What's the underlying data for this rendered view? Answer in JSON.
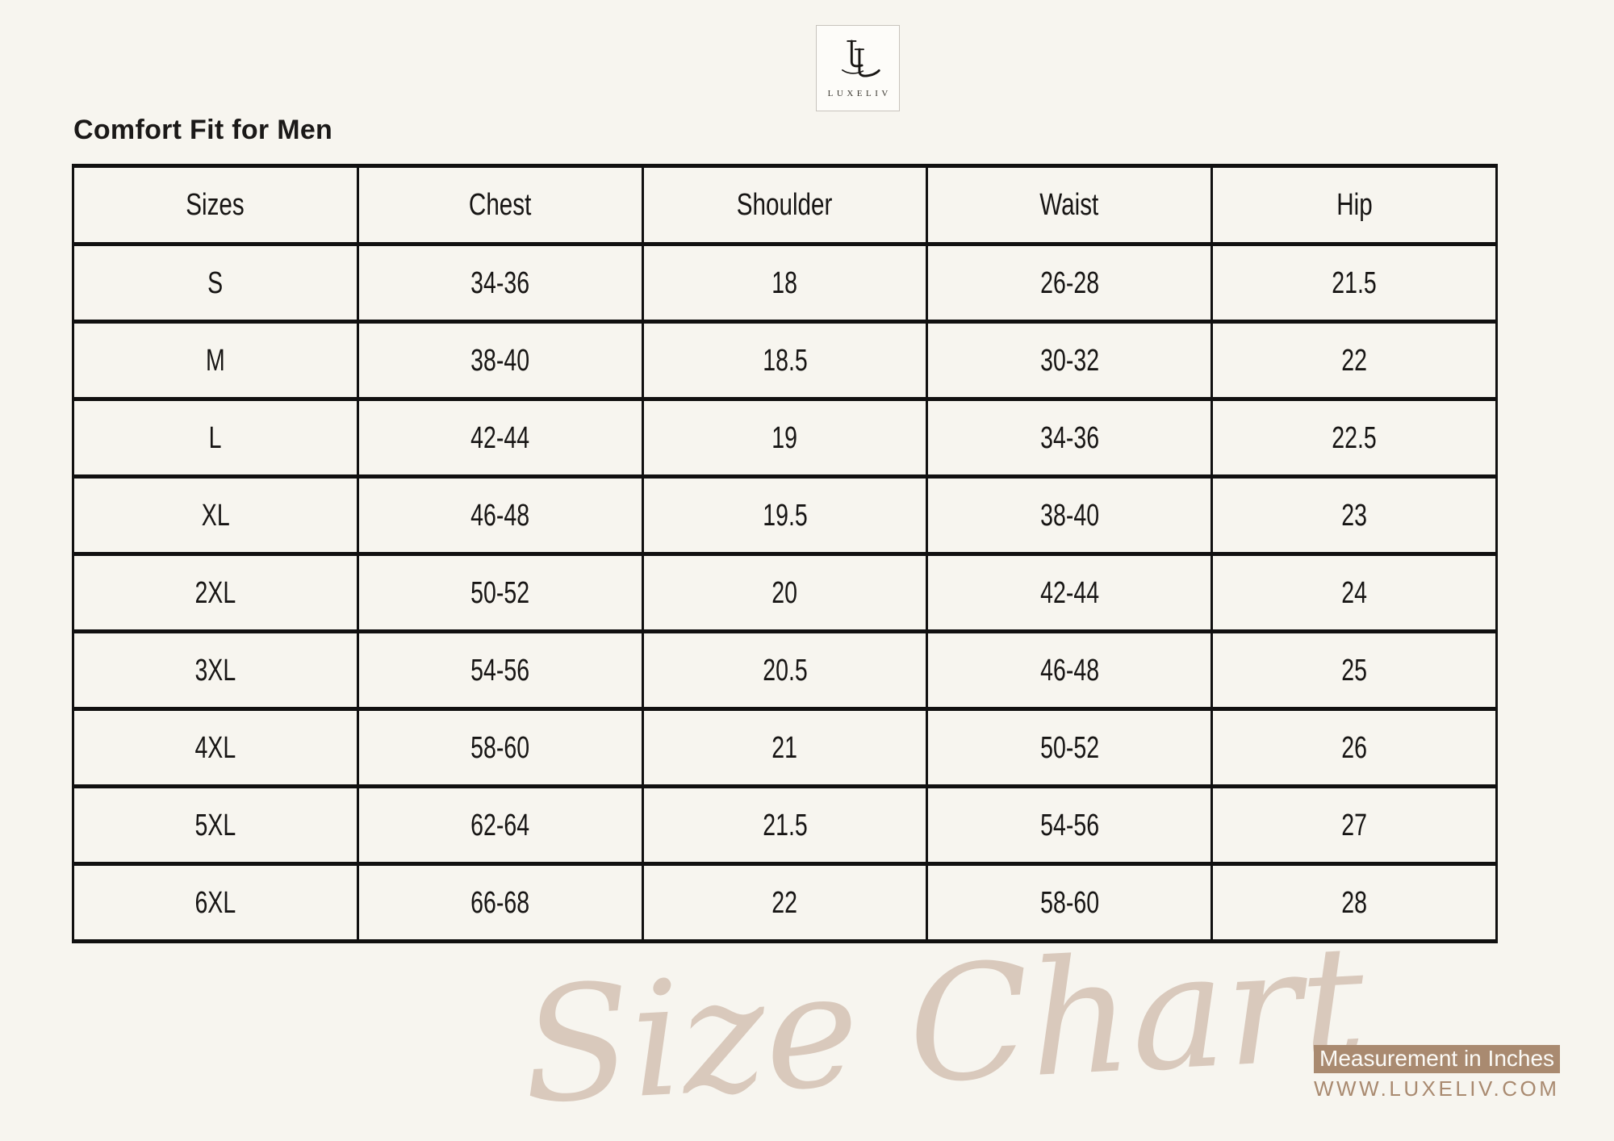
{
  "page": {
    "background_color": "#f7f5ef",
    "text_color": "#1b1918",
    "border_color": "#111010",
    "accent_brown": "#a98a70",
    "watermark_color": "#d9c9bc"
  },
  "logo": {
    "brand": "LUXELIV",
    "monogram": "LL"
  },
  "title": "Comfort Fit for Men",
  "table": {
    "columns": [
      "Sizes",
      "Chest",
      "Shoulder",
      "Waist",
      "Hip"
    ],
    "rows": [
      [
        "S",
        "34-36",
        "18",
        "26-28",
        "21.5"
      ],
      [
        "M",
        "38-40",
        "18.5",
        "30-32",
        "22"
      ],
      [
        "L",
        "42-44",
        "19",
        "34-36",
        "22.5"
      ],
      [
        "XL",
        "46-48",
        "19.5",
        "38-40",
        "23"
      ],
      [
        "2XL",
        "50-52",
        "20",
        "42-44",
        "24"
      ],
      [
        "3XL",
        "54-56",
        "20.5",
        "46-48",
        "25"
      ],
      [
        "4XL",
        "58-60",
        "21",
        "50-52",
        "26"
      ],
      [
        "5XL",
        "62-64",
        "21.5",
        "54-56",
        "27"
      ],
      [
        "6XL",
        "66-68",
        "22",
        "58-60",
        "28"
      ]
    ]
  },
  "watermark": "Size Chart",
  "footer": {
    "badge": "Measurement in Inches",
    "website": "WWW.LUXELIV.COM"
  }
}
